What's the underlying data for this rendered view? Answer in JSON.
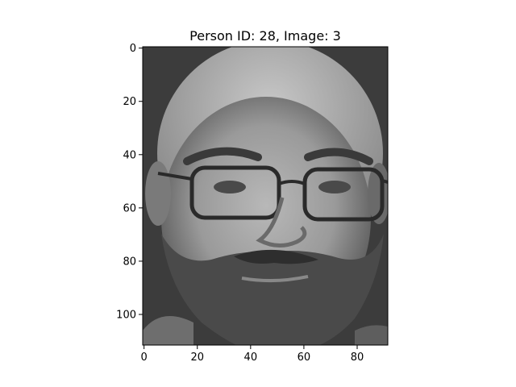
{
  "figure": {
    "title": "Person ID: 28, Image: 3"
  },
  "image_axes": {
    "x_range": [
      0,
      92
    ],
    "y_range": [
      0,
      112
    ],
    "x_ticks": [
      "0",
      "20",
      "40",
      "60",
      "80"
    ],
    "y_ticks": [
      "0",
      "20",
      "40",
      "60",
      "80",
      "100"
    ],
    "colormap": "gray",
    "subject": "grayscale face photograph"
  }
}
